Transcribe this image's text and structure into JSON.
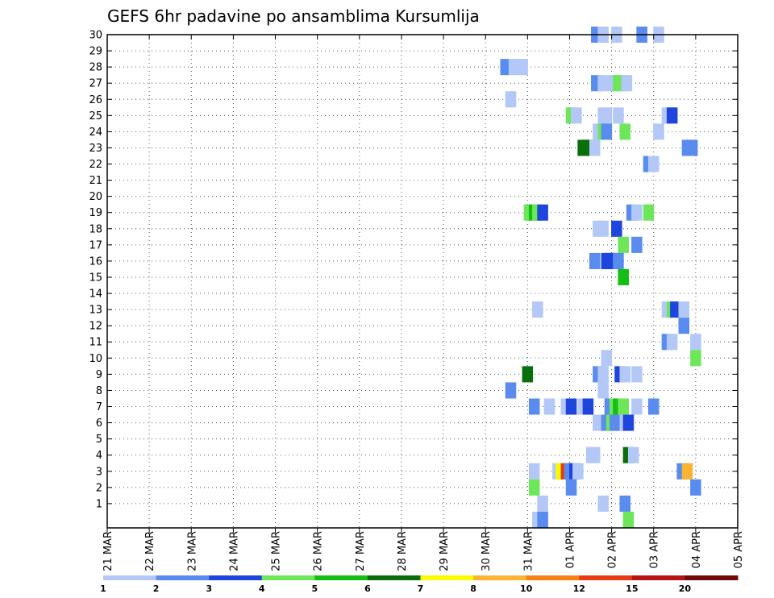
{
  "chart_data": {
    "type": "heatmap",
    "title": "GEFS 6hr padavine po ansamblima Kursumlija",
    "xlabel": "",
    "ylabel": "",
    "y_tick_labels": [
      "1",
      "2",
      "3",
      "4",
      "5",
      "6",
      "7",
      "8",
      "9",
      "10",
      "11",
      "12",
      "13",
      "14",
      "15",
      "16",
      "17",
      "18",
      "19",
      "20",
      "21",
      "22",
      "23",
      "24",
      "25",
      "26",
      "27",
      "28",
      "29",
      "30"
    ],
    "ylim": [
      0,
      30
    ],
    "x_tick_labels": [
      "21 MAR",
      "22 MAR",
      "23 MAR",
      "24 MAR",
      "25 MAR",
      "26 MAR",
      "27 MAR",
      "28 MAR",
      "29 MAR",
      "30 MAR",
      "31 MAR",
      "01 APR",
      "02 APR",
      "03 APR",
      "04 APR",
      "05 APR"
    ],
    "x_range_days": [
      0,
      15
    ],
    "grid": true,
    "colorbar": {
      "labels": [
        "1",
        "2",
        "3",
        "4",
        "5",
        "6",
        "7",
        "8",
        "10",
        "12",
        "15",
        "20"
      ],
      "colors": [
        "#b4c8f8",
        "#5a8cf0",
        "#1e46dc",
        "#6ee65a",
        "#14be14",
        "#0a6e0a",
        "#fafa00",
        "#fab432",
        "#fa8214",
        "#e63c14",
        "#b41414",
        "#700a0a"
      ]
    },
    "cells": [
      {
        "t": 29.1,
        "m": 30,
        "c": 2
      },
      {
        "t": 29.5,
        "m": 30,
        "c": 1
      },
      {
        "t": 30.3,
        "m": 30,
        "c": 1
      },
      {
        "t": 31.8,
        "m": 30,
        "c": 2
      },
      {
        "t": 32.8,
        "m": 30,
        "c": 1
      },
      {
        "t": 23.7,
        "m": 28,
        "c": 2
      },
      {
        "t": 24.2,
        "m": 28,
        "c": 1
      },
      {
        "t": 24.5,
        "m": 28,
        "c": 1
      },
      {
        "t": 24.7,
        "m": 28,
        "c": 1
      },
      {
        "t": 29.1,
        "m": 27,
        "c": 2
      },
      {
        "t": 29.5,
        "m": 27,
        "c": 1
      },
      {
        "t": 30.1,
        "m": 27,
        "c": 1
      },
      {
        "t": 30.4,
        "m": 27,
        "c": 4
      },
      {
        "t": 30.7,
        "m": 27,
        "c": 4
      },
      {
        "t": 30.9,
        "m": 27,
        "c": 1
      },
      {
        "t": 24.0,
        "m": 26,
        "c": 1
      },
      {
        "t": 27.6,
        "m": 25,
        "c": 4
      },
      {
        "t": 27.9,
        "m": 25,
        "c": 1
      },
      {
        "t": 29.5,
        "m": 25,
        "c": 1
      },
      {
        "t": 29.7,
        "m": 25,
        "c": 1
      },
      {
        "t": 30.4,
        "m": 25,
        "c": 1
      },
      {
        "t": 33.3,
        "m": 25,
        "c": 1
      },
      {
        "t": 33.6,
        "m": 25,
        "c": 3
      },
      {
        "t": 29.2,
        "m": 24,
        "c": 1
      },
      {
        "t": 29.5,
        "m": 24,
        "c": 4
      },
      {
        "t": 29.7,
        "m": 24,
        "c": 2
      },
      {
        "t": 30.8,
        "m": 24,
        "c": 4
      },
      {
        "t": 32.8,
        "m": 24,
        "c": 1
      },
      {
        "t": 28.3,
        "m": 23,
        "c": 6
      },
      {
        "t": 28.5,
        "m": 23,
        "c": 6
      },
      {
        "t": 28.8,
        "m": 23,
        "c": 6
      },
      {
        "t": 29.0,
        "m": 23,
        "c": 1
      },
      {
        "t": 34.5,
        "m": 23,
        "c": 2
      },
      {
        "t": 34.8,
        "m": 23,
        "c": 2
      },
      {
        "t": 32.2,
        "m": 22,
        "c": 2
      },
      {
        "t": 32.5,
        "m": 22,
        "c": 1
      },
      {
        "t": 25.1,
        "m": 19,
        "c": 4
      },
      {
        "t": 25.4,
        "m": 19,
        "c": 5
      },
      {
        "t": 25.6,
        "m": 19,
        "c": 4
      },
      {
        "t": 25.9,
        "m": 19,
        "c": 3
      },
      {
        "t": 31.2,
        "m": 19,
        "c": 2
      },
      {
        "t": 31.5,
        "m": 19,
        "c": 1
      },
      {
        "t": 32.2,
        "m": 19,
        "c": 4
      },
      {
        "t": 29.2,
        "m": 18,
        "c": 1
      },
      {
        "t": 29.5,
        "m": 18,
        "c": 1
      },
      {
        "t": 30.3,
        "m": 18,
        "c": 3
      },
      {
        "t": 30.7,
        "m": 17,
        "c": 4
      },
      {
        "t": 31.5,
        "m": 17,
        "c": 2
      },
      {
        "t": 29.0,
        "m": 16,
        "c": 2
      },
      {
        "t": 29.7,
        "m": 16,
        "c": 3
      },
      {
        "t": 29.9,
        "m": 16,
        "c": 3
      },
      {
        "t": 30.2,
        "m": 16,
        "c": 3
      },
      {
        "t": 30.4,
        "m": 16,
        "c": 2
      },
      {
        "t": 30.7,
        "m": 15,
        "c": 5
      },
      {
        "t": 25.6,
        "m": 13,
        "c": 1
      },
      {
        "t": 33.3,
        "m": 13,
        "c": 1
      },
      {
        "t": 33.6,
        "m": 13,
        "c": 4
      },
      {
        "t": 33.8,
        "m": 13,
        "c": 3
      },
      {
        "t": 34.3,
        "m": 13,
        "c": 1
      },
      {
        "t": 34.3,
        "m": 12,
        "c": 2
      },
      {
        "t": 33.3,
        "m": 11,
        "c": 2
      },
      {
        "t": 33.6,
        "m": 11,
        "c": 1
      },
      {
        "t": 35.0,
        "m": 11,
        "c": 1
      },
      {
        "t": 29.7,
        "m": 10,
        "c": 1
      },
      {
        "t": 35.0,
        "m": 10,
        "c": 4
      },
      {
        "t": 25.0,
        "m": 9,
        "c": 6
      },
      {
        "t": 29.2,
        "m": 9,
        "c": 2
      },
      {
        "t": 29.5,
        "m": 9,
        "c": 1
      },
      {
        "t": 30.5,
        "m": 9,
        "c": 3
      },
      {
        "t": 30.8,
        "m": 9,
        "c": 1
      },
      {
        "t": 31.5,
        "m": 9,
        "c": 1
      },
      {
        "t": 24.0,
        "m": 8,
        "c": 2
      },
      {
        "t": 29.5,
        "m": 8,
        "c": 1
      },
      {
        "t": 25.4,
        "m": 7,
        "c": 2
      },
      {
        "t": 26.3,
        "m": 7,
        "c": 1
      },
      {
        "t": 27.3,
        "m": 7,
        "c": 1
      },
      {
        "t": 27.6,
        "m": 7,
        "c": 3
      },
      {
        "t": 28.3,
        "m": 7,
        "c": 1
      },
      {
        "t": 28.6,
        "m": 7,
        "c": 3
      },
      {
        "t": 29.9,
        "m": 7,
        "c": 2
      },
      {
        "t": 30.2,
        "m": 7,
        "c": 4
      },
      {
        "t": 30.4,
        "m": 7,
        "c": 5
      },
      {
        "t": 30.7,
        "m": 7,
        "c": 4
      },
      {
        "t": 31.5,
        "m": 7,
        "c": 1
      },
      {
        "t": 32.5,
        "m": 7,
        "c": 2
      },
      {
        "t": 29.2,
        "m": 6,
        "c": 1
      },
      {
        "t": 29.7,
        "m": 6,
        "c": 2
      },
      {
        "t": 30.0,
        "m": 6,
        "c": 4
      },
      {
        "t": 30.2,
        "m": 6,
        "c": 2
      },
      {
        "t": 30.5,
        "m": 6,
        "c": 2
      },
      {
        "t": 30.8,
        "m": 6,
        "c": 1
      },
      {
        "t": 31.0,
        "m": 6,
        "c": 3
      },
      {
        "t": 28.8,
        "m": 4,
        "c": 1
      },
      {
        "t": 29.0,
        "m": 4,
        "c": 1
      },
      {
        "t": 31.0,
        "m": 4,
        "c": 6
      },
      {
        "t": 31.3,
        "m": 4,
        "c": 1
      },
      {
        "t": 25.4,
        "m": 3,
        "c": 1
      },
      {
        "t": 26.8,
        "m": 3,
        "c": 1
      },
      {
        "t": 27.0,
        "m": 3,
        "c": 7
      },
      {
        "t": 27.3,
        "m": 3,
        "c": 10
      },
      {
        "t": 27.5,
        "m": 3,
        "c": 2
      },
      {
        "t": 27.8,
        "m": 3,
        "c": 3
      },
      {
        "t": 28.0,
        "m": 3,
        "c": 1
      },
      {
        "t": 34.2,
        "m": 3,
        "c": 2
      },
      {
        "t": 34.5,
        "m": 3,
        "c": 8
      },
      {
        "t": 25.4,
        "m": 2,
        "c": 4
      },
      {
        "t": 27.6,
        "m": 2,
        "c": 2
      },
      {
        "t": 35.0,
        "m": 2,
        "c": 2
      },
      {
        "t": 25.9,
        "m": 1,
        "c": 1
      },
      {
        "t": 29.5,
        "m": 1,
        "c": 1
      },
      {
        "t": 30.8,
        "m": 1,
        "c": 2
      },
      {
        "t": 25.6,
        "m": 0,
        "c": 1
      },
      {
        "t": 25.9,
        "m": 0,
        "c": 2
      },
      {
        "t": 31.0,
        "m": 0,
        "c": 4
      }
    ]
  }
}
